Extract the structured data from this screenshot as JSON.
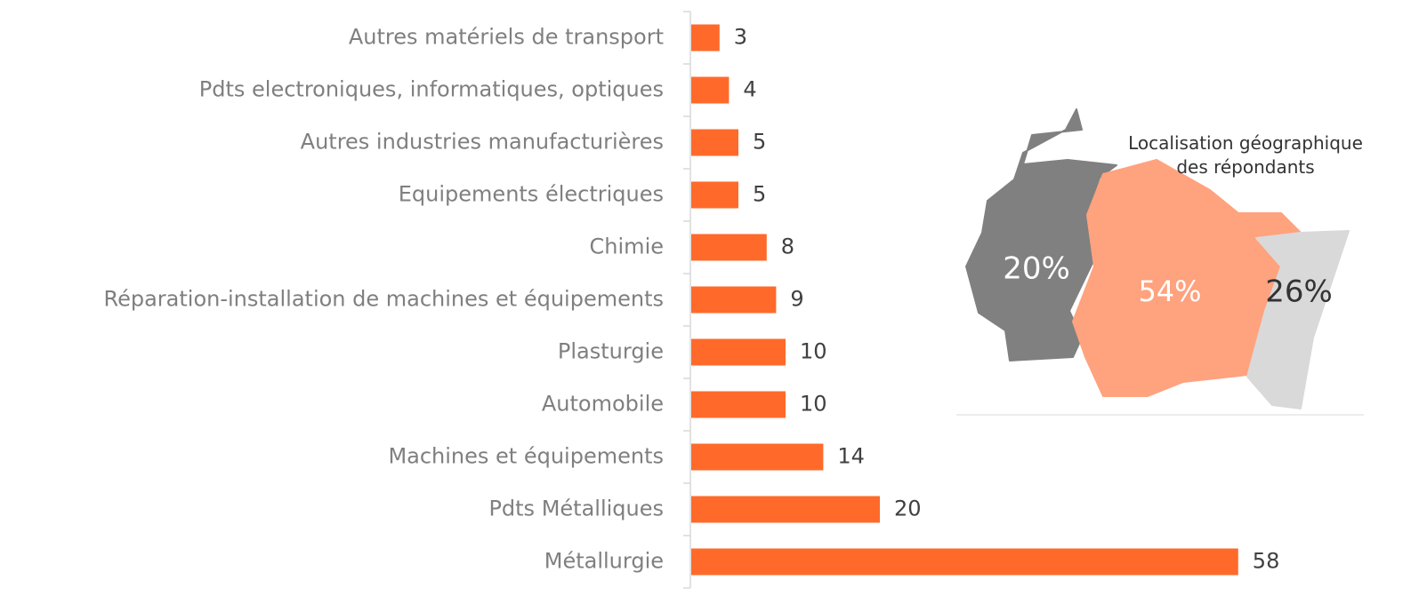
{
  "chart_data": [
    {
      "type": "bar",
      "orientation": "horizontal",
      "categories": [
        "Autres matériels de transport",
        "Pdts electroniques, informatiques, optiques",
        "Autres industries manufacturières",
        "Equipements électriques",
        "Chimie",
        "Réparation-installation de machines et équipements",
        "Plasturgie",
        "Automobile",
        "Machines et équipements",
        "Pdts Métalliques",
        "Métallurgie"
      ],
      "values": [
        3,
        4,
        5,
        5,
        8,
        9,
        10,
        10,
        14,
        20,
        58
      ],
      "color": "#ff6a2b",
      "xlim": [
        0,
        60
      ]
    },
    {
      "type": "map",
      "title": "Localisation géographique des répondants",
      "values": [
        20,
        54,
        26
      ],
      "value_labels": [
        "20%",
        "54%",
        "26%"
      ],
      "colors": [
        "#808080",
        "#ffa27e",
        "#d9d9d9"
      ],
      "label_colors": [
        "#ffffff",
        "#ffffff",
        "#333333"
      ]
    }
  ]
}
